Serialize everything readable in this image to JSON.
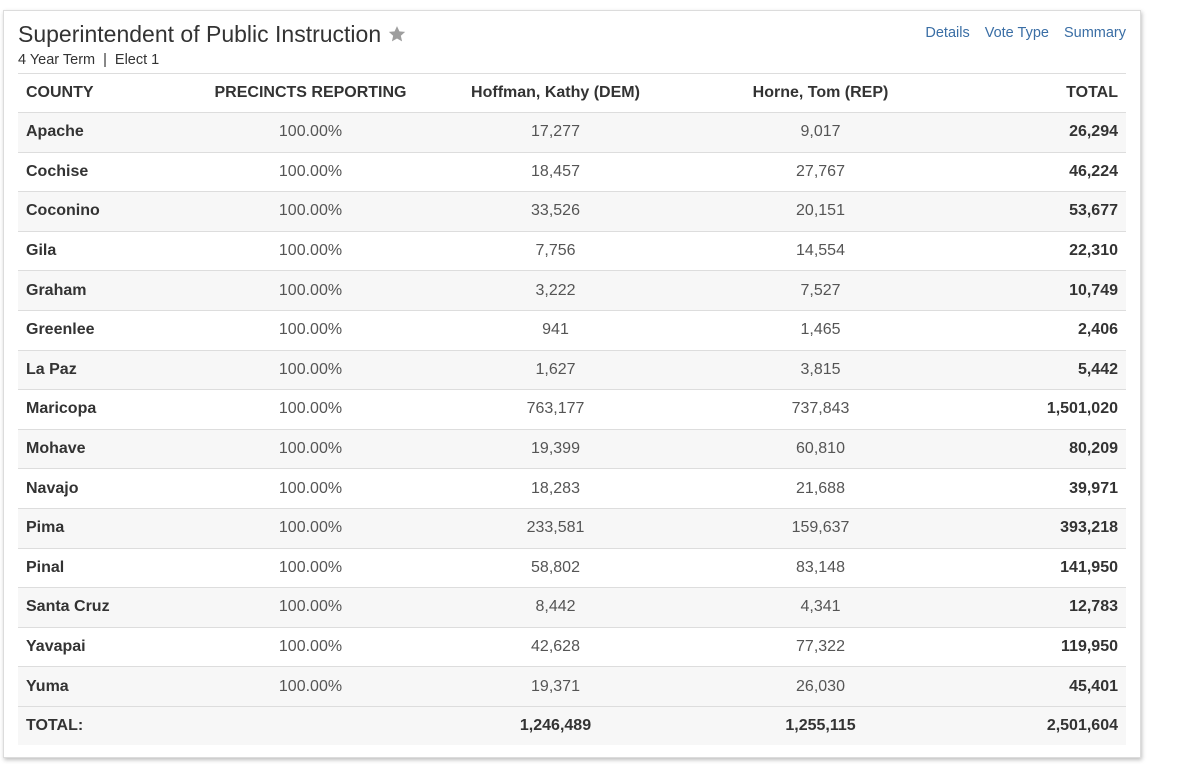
{
  "header": {
    "title": "Superintendent of Public Instruction",
    "term": "4 Year Term",
    "separator": "|",
    "elect": "Elect 1",
    "links": {
      "details": "Details",
      "vote_type": "Vote Type",
      "summary": "Summary"
    },
    "star_icon": "star-icon",
    "star_color": "#9e9e9e",
    "link_color": "#3a6ea5"
  },
  "table": {
    "columns": {
      "county": "COUNTY",
      "precincts": "PRECINCTS REPORTING",
      "dem": "Hoffman, Kathy (DEM)",
      "rep": "Horne, Tom (REP)",
      "total": "TOTAL"
    },
    "rows": [
      {
        "county": "Apache",
        "precincts": "100.00%",
        "dem": "17,277",
        "rep": "9,017",
        "total": "26,294"
      },
      {
        "county": "Cochise",
        "precincts": "100.00%",
        "dem": "18,457",
        "rep": "27,767",
        "total": "46,224"
      },
      {
        "county": "Coconino",
        "precincts": "100.00%",
        "dem": "33,526",
        "rep": "20,151",
        "total": "53,677"
      },
      {
        "county": "Gila",
        "precincts": "100.00%",
        "dem": "7,756",
        "rep": "14,554",
        "total": "22,310"
      },
      {
        "county": "Graham",
        "precincts": "100.00%",
        "dem": "3,222",
        "rep": "7,527",
        "total": "10,749"
      },
      {
        "county": "Greenlee",
        "precincts": "100.00%",
        "dem": "941",
        "rep": "1,465",
        "total": "2,406"
      },
      {
        "county": "La Paz",
        "precincts": "100.00%",
        "dem": "1,627",
        "rep": "3,815",
        "total": "5,442"
      },
      {
        "county": "Maricopa",
        "precincts": "100.00%",
        "dem": "763,177",
        "rep": "737,843",
        "total": "1,501,020"
      },
      {
        "county": "Mohave",
        "precincts": "100.00%",
        "dem": "19,399",
        "rep": "60,810",
        "total": "80,209"
      },
      {
        "county": "Navajo",
        "precincts": "100.00%",
        "dem": "18,283",
        "rep": "21,688",
        "total": "39,971"
      },
      {
        "county": "Pima",
        "precincts": "100.00%",
        "dem": "233,581",
        "rep": "159,637",
        "total": "393,218"
      },
      {
        "county": "Pinal",
        "precincts": "100.00%",
        "dem": "58,802",
        "rep": "83,148",
        "total": "141,950"
      },
      {
        "county": "Santa Cruz",
        "precincts": "100.00%",
        "dem": "8,442",
        "rep": "4,341",
        "total": "12,783"
      },
      {
        "county": "Yavapai",
        "precincts": "100.00%",
        "dem": "42,628",
        "rep": "77,322",
        "total": "119,950"
      },
      {
        "county": "Yuma",
        "precincts": "100.00%",
        "dem": "19,371",
        "rep": "26,030",
        "total": "45,401"
      }
    ],
    "totals": {
      "label": "TOTAL:",
      "dem": "1,246,489",
      "rep": "1,255,115",
      "total": "2,501,604"
    }
  }
}
